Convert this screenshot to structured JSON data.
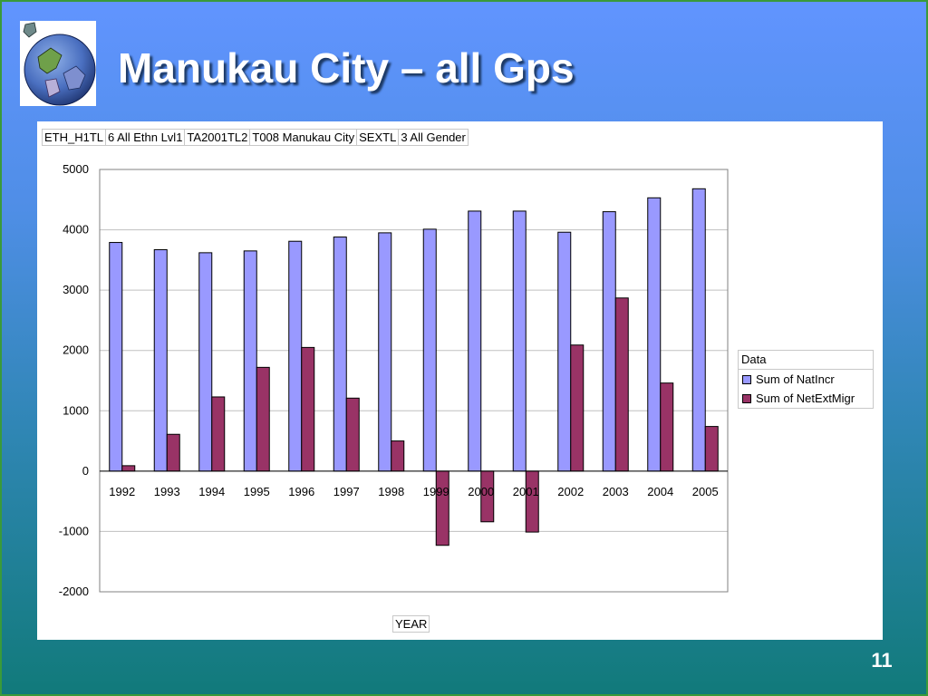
{
  "slide": {
    "title": "Manukau City – all Gps",
    "page_number": "11"
  },
  "logo": {
    "icon": "globe-icon"
  },
  "filters": [
    "ETH_H1TL",
    "6 All Ethn Lvl1",
    "TA2001TL2",
    "T008 Manukau City",
    "SEXTL",
    "3 All Gender"
  ],
  "chart_data": {
    "type": "bar",
    "categories": [
      "1992",
      "1993",
      "1994",
      "1995",
      "1996",
      "1997",
      "1998",
      "1999",
      "2000",
      "2001",
      "2002",
      "2003",
      "2004",
      "2005"
    ],
    "series": [
      {
        "name": "Sum of NatIncr",
        "color": "#9999ff",
        "values": [
          3790,
          3670,
          3620,
          3650,
          3810,
          3880,
          3950,
          4010,
          4310,
          4310,
          3960,
          4300,
          4530,
          4680
        ]
      },
      {
        "name": "Sum of NetExtMigr",
        "color": "#993366",
        "values": [
          90,
          610,
          1230,
          1720,
          2050,
          1210,
          500,
          -1230,
          -840,
          -1010,
          2090,
          2870,
          1460,
          740
        ]
      }
    ],
    "ylim": [
      -2000,
      5000
    ],
    "yticks": [
      5000,
      4000,
      3000,
      2000,
      1000,
      0,
      -1000,
      -2000
    ],
    "xlabel": "YEAR",
    "ylabel": "",
    "legend_title": "Data",
    "legend_position": "right",
    "grid": true
  }
}
